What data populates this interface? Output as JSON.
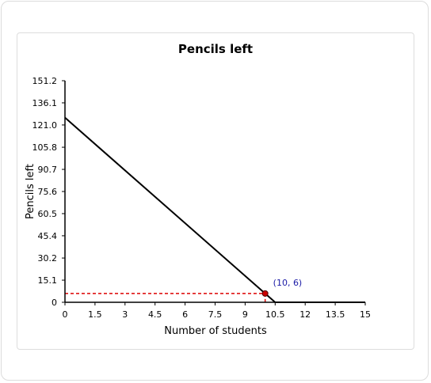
{
  "chart_data": {
    "type": "line",
    "title": "Pencils left",
    "xlabel": "Number of students",
    "ylabel": "Pencils left",
    "xlim": [
      0,
      15
    ],
    "ylim": [
      0,
      151.2
    ],
    "x_ticks": [
      "0",
      "1.5",
      "3",
      "4.5",
      "6",
      "7.5",
      "9",
      "10.5",
      "12",
      "13.5",
      "15"
    ],
    "y_ticks": [
      "0",
      "15.1",
      "30.2",
      "45.4",
      "60.5",
      "75.6",
      "90.7",
      "105.8",
      "121.0",
      "136.1",
      "151.2"
    ],
    "grid": false,
    "series": [
      {
        "x": [
          0,
          10.5,
          15
        ],
        "y": [
          126,
          0,
          0
        ],
        "color": "#000000"
      }
    ],
    "highlight_point": {
      "x": 10,
      "y": 6,
      "label": "(10, 6)",
      "color": "#cc0000",
      "guide_color": "#dd0000"
    }
  }
}
